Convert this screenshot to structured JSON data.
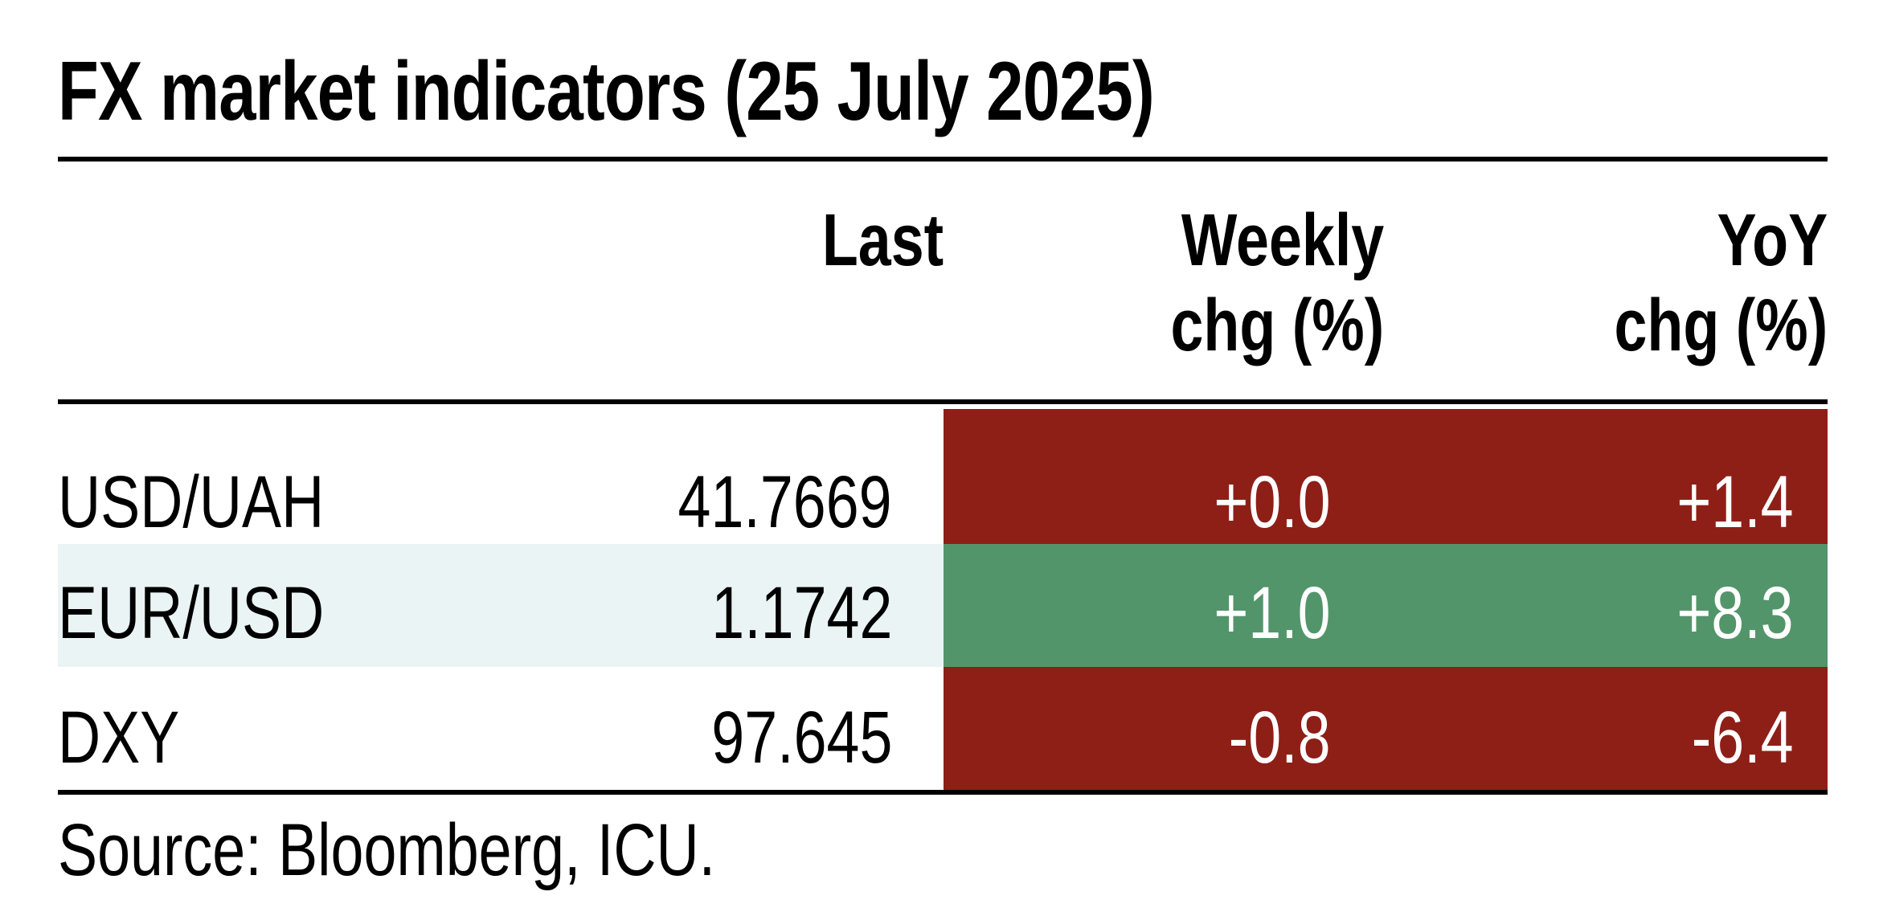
{
  "title": "FX market indicators (25 July 2025)",
  "headers": {
    "last": "Last",
    "weekly_line1": "Weekly",
    "weekly_line2": "chg (%)",
    "yoy_line1": "YoY",
    "yoy_line2": "chg (%)"
  },
  "colors": {
    "negative_fill": "#8e1f17",
    "positive_fill": "#53956a",
    "alt_row_fill": "#eaf4f4"
  },
  "chart_data": {
    "type": "table",
    "title": "FX market indicators (25 July 2025)",
    "columns": [
      "",
      "Last",
      "Weekly chg (%)",
      "YoY chg (%)"
    ],
    "rows": [
      {
        "label": "USD/UAH",
        "last": "41.7669",
        "weekly": "+0.0",
        "yoy": "+1.4",
        "weekly_color": "#8e1f17",
        "yoy_color": "#8e1f17",
        "striped": false
      },
      {
        "label": "EUR/USD",
        "last": "1.1742",
        "weekly": "+1.0",
        "yoy": "+8.3",
        "weekly_color": "#53956a",
        "yoy_color": "#53956a",
        "striped": true
      },
      {
        "label": "DXY",
        "last": "97.645",
        "weekly": "-0.8",
        "yoy": "-6.4",
        "weekly_color": "#8e1f17",
        "yoy_color": "#8e1f17",
        "striped": false
      }
    ],
    "source": "Source: Bloomberg, ICU."
  }
}
